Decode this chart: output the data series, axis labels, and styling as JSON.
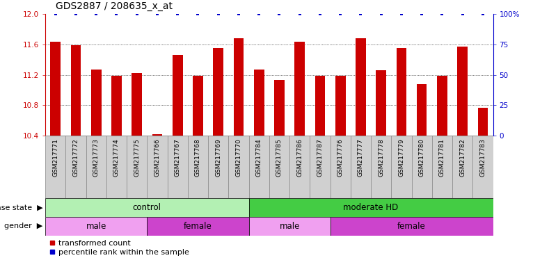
{
  "title": "GDS2887 / 208635_x_at",
  "samples": [
    "GSM217771",
    "GSM217772",
    "GSM217773",
    "GSM217774",
    "GSM217775",
    "GSM217766",
    "GSM217767",
    "GSM217768",
    "GSM217769",
    "GSM217770",
    "GSM217784",
    "GSM217785",
    "GSM217786",
    "GSM217787",
    "GSM217776",
    "GSM217777",
    "GSM217778",
    "GSM217779",
    "GSM217780",
    "GSM217781",
    "GSM217782",
    "GSM217783"
  ],
  "red_values": [
    11.63,
    11.59,
    11.27,
    11.19,
    11.22,
    10.42,
    11.46,
    11.19,
    11.55,
    11.68,
    11.27,
    11.13,
    11.63,
    11.19,
    11.19,
    11.68,
    11.26,
    11.55,
    11.08,
    11.19,
    11.57,
    10.77
  ],
  "blue_values": [
    100,
    100,
    100,
    100,
    100,
    100,
    100,
    100,
    100,
    100,
    100,
    100,
    100,
    100,
    100,
    100,
    100,
    100,
    100,
    100,
    100,
    100
  ],
  "ylim_left": [
    10.4,
    12.0
  ],
  "ylim_right": [
    0,
    100
  ],
  "yticks_left": [
    10.4,
    10.8,
    11.2,
    11.6,
    12.0
  ],
  "yticks_right": [
    0,
    25,
    50,
    75,
    100
  ],
  "bar_color": "#cc0000",
  "dot_color": "#0000cc",
  "groups": {
    "disease_state": [
      {
        "label": "control",
        "start": 0,
        "end": 9,
        "color": "#b3f0b3"
      },
      {
        "label": "moderate HD",
        "start": 10,
        "end": 21,
        "color": "#44cc44"
      }
    ],
    "gender": [
      {
        "label": "male",
        "start": 0,
        "end": 4,
        "color": "#f0a0f0"
      },
      {
        "label": "female",
        "start": 5,
        "end": 9,
        "color": "#cc44cc"
      },
      {
        "label": "male",
        "start": 10,
        "end": 13,
        "color": "#f0a0f0"
      },
      {
        "label": "female",
        "start": 14,
        "end": 21,
        "color": "#cc44cc"
      }
    ]
  },
  "legend_items": [
    {
      "label": "transformed count",
      "color": "#cc0000"
    },
    {
      "label": "percentile rank within the sample",
      "color": "#0000cc"
    }
  ],
  "bg_color": "#ffffff",
  "bar_width": 0.5,
  "grid_color": "#555555",
  "title_fontsize": 10,
  "tick_fontsize": 7.5,
  "sample_fontsize": 6.5,
  "group_label_fontsize": 8.5,
  "legend_fontsize": 8,
  "left_label_color": "#cc0000",
  "right_label_color": "#0000cc",
  "xtick_bg": "#d0d0d0"
}
